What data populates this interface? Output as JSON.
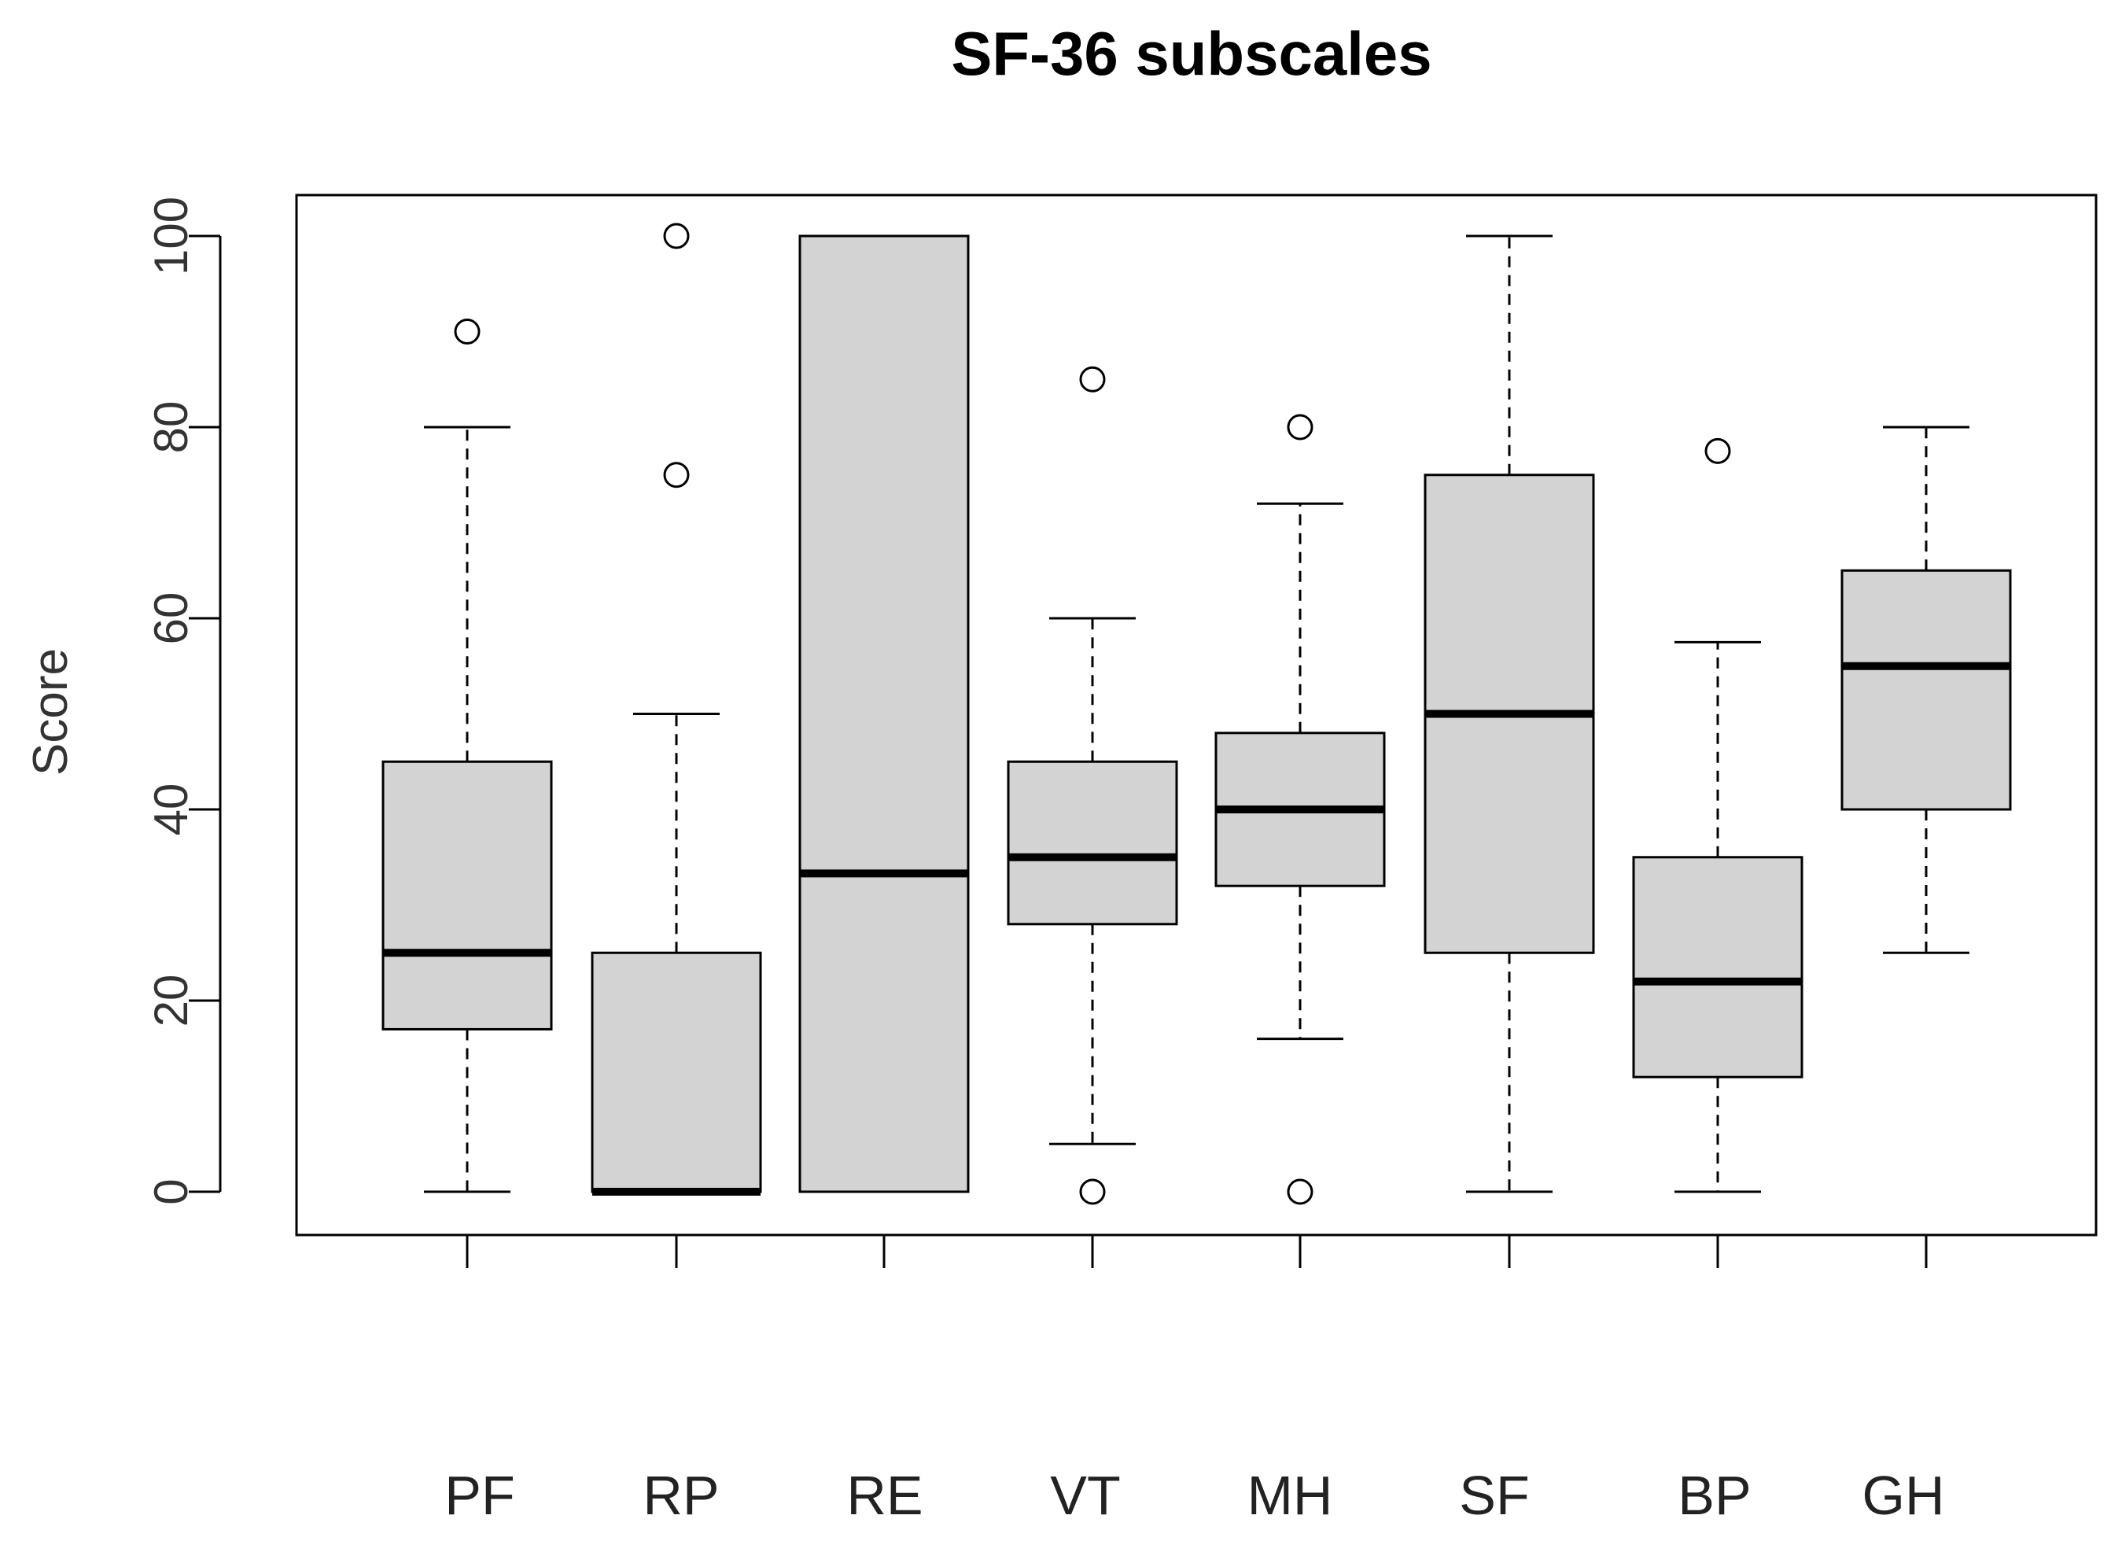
{
  "chart_data": {
    "type": "boxplot",
    "title": "SF-36 subscales",
    "xlabel": "",
    "ylabel": "Score",
    "ylim": [
      0,
      100
    ],
    "yticks": [
      0,
      20,
      40,
      60,
      80,
      100
    ],
    "grid": false,
    "legend": "none",
    "categories": [
      "PF",
      "RP",
      "RE",
      "VT",
      "MH",
      "SF",
      "BP",
      "GH"
    ],
    "boxes": [
      {
        "name": "PF",
        "whisker_low": 0,
        "q1": 17,
        "median": 25,
        "q3": 45,
        "whisker_high": 80,
        "outliers": [
          90
        ]
      },
      {
        "name": "RP",
        "whisker_low": 0,
        "q1": 0,
        "median": 0,
        "q3": 25,
        "whisker_high": 50,
        "outliers": [
          75,
          100
        ]
      },
      {
        "name": "RE",
        "whisker_low": 0,
        "q1": 0,
        "median": 33.3,
        "q3": 100,
        "whisker_high": 100,
        "outliers": []
      },
      {
        "name": "VT",
        "whisker_low": 5,
        "q1": 28,
        "median": 35,
        "q3": 45,
        "whisker_high": 60,
        "outliers": [
          0,
          85
        ]
      },
      {
        "name": "MH",
        "whisker_low": 16,
        "q1": 32,
        "median": 40,
        "q3": 48,
        "whisker_high": 72,
        "outliers": [
          0,
          80
        ]
      },
      {
        "name": "SF",
        "whisker_low": 0,
        "q1": 25,
        "median": 50,
        "q3": 75,
        "whisker_high": 100,
        "outliers": []
      },
      {
        "name": "BP",
        "whisker_low": 0,
        "q1": 12,
        "median": 22,
        "q3": 35,
        "whisker_high": 57.5,
        "outliers": [
          77.5
        ]
      },
      {
        "name": "GH",
        "whisker_low": 25,
        "q1": 40,
        "median": 55,
        "q3": 65,
        "whisker_high": 80,
        "outliers": []
      }
    ],
    "colors": {
      "box_fill": "#d3d3d3",
      "stroke": "#000000",
      "text": "#333333"
    }
  }
}
